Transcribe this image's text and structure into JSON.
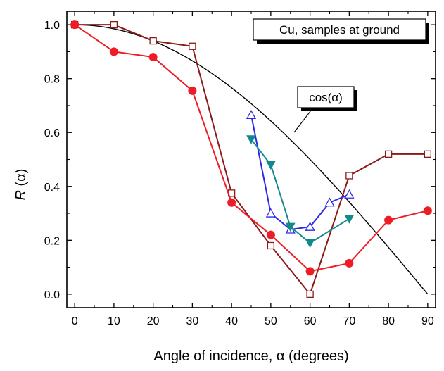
{
  "chart_data": {
    "type": "line",
    "xlabel": "Angle of  incidence, α (degrees)",
    "ylabel_main": "R",
    "ylabel_arg": "(α)",
    "xlim": [
      -2,
      92
    ],
    "ylim": [
      -0.05,
      1.05
    ],
    "x_ticks": [
      0,
      10,
      20,
      30,
      40,
      50,
      60,
      70,
      80,
      90
    ],
    "x_tick_labels": [
      "0",
      "10",
      "20",
      "30",
      "40",
      "50",
      "60",
      "70",
      "80",
      "90"
    ],
    "y_ticks": [
      0.0,
      0.2,
      0.4,
      0.6,
      0.8,
      1.0
    ],
    "y_tick_labels": [
      "0.0",
      "0.2",
      "0.4",
      "0.6",
      "0.8",
      "1.0"
    ],
    "grid": false,
    "legend_text": "Cu, samples at ground",
    "curve_label": "cos(α)",
    "series": [
      {
        "color": "#8b1a1a",
        "marker": "open-square",
        "x": [
          0,
          10,
          20,
          30,
          40,
          50,
          60,
          70,
          80,
          90
        ],
        "y": [
          1.0,
          1.0,
          0.94,
          0.92,
          0.375,
          0.18,
          0.0,
          0.44,
          0.52,
          0.52
        ]
      },
      {
        "color": "#ee1c25",
        "marker": "filled-circle",
        "x": [
          0,
          10,
          20,
          30,
          40,
          50,
          60,
          70,
          80,
          90
        ],
        "y": [
          1.0,
          0.9,
          0.88,
          0.755,
          0.34,
          0.22,
          0.085,
          0.115,
          0.275,
          0.31
        ]
      },
      {
        "color": "#2a2ae8",
        "marker": "open-triangle-up",
        "x": [
          45,
          50,
          55,
          60,
          65,
          70
        ],
        "y": [
          0.665,
          0.3,
          0.24,
          0.25,
          0.34,
          0.37
        ]
      },
      {
        "color": "#138a8a",
        "marker": "filled-triangle-down",
        "x": [
          45,
          50,
          55,
          60,
          70
        ],
        "y": [
          0.575,
          0.48,
          0.25,
          0.19,
          0.28
        ]
      },
      {
        "color": "#000000",
        "marker": "none",
        "function": "cos",
        "x_range": [
          0,
          90
        ]
      }
    ]
  }
}
